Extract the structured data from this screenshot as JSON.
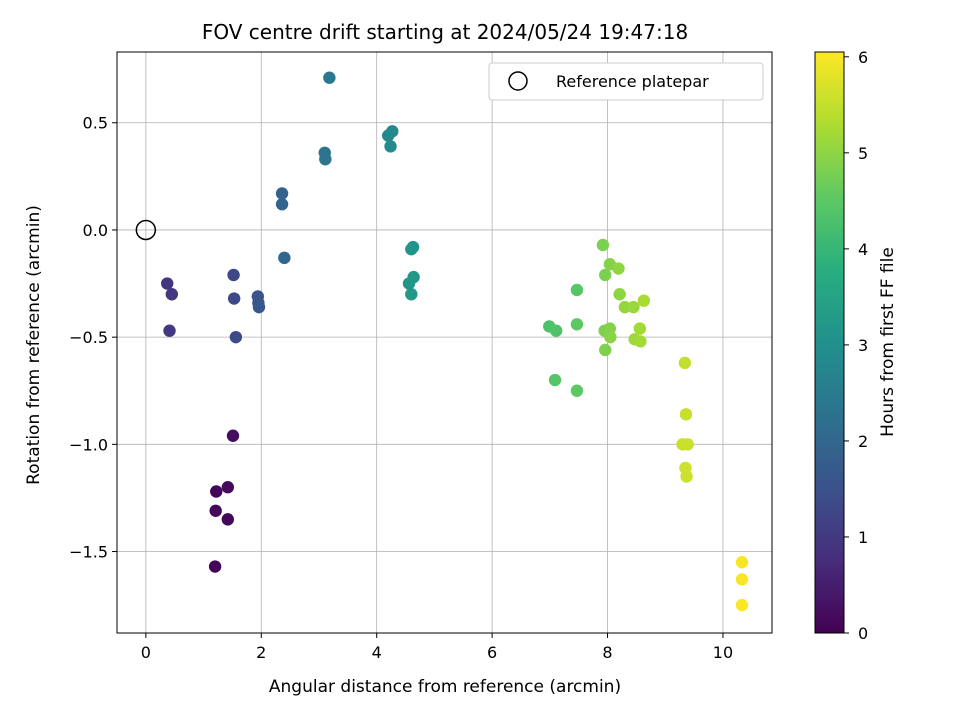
{
  "chart_data": {
    "type": "scatter",
    "title": "FOV centre drift starting at 2024/05/24 19:47:18",
    "xlabel": "Angular distance from reference (arcmin)",
    "ylabel": "Rotation from reference (arcmin)",
    "xlim": [
      -0.5,
      10.85
    ],
    "ylim": [
      -1.88,
      0.83
    ],
    "xticks": [
      0,
      2,
      4,
      6,
      8,
      10
    ],
    "yticks": [
      0.5,
      0.0,
      -0.5,
      -1.0,
      -1.5
    ],
    "ytick_labels": [
      "0.5",
      "0.0",
      "−0.5",
      "−1.0",
      "−1.5"
    ],
    "grid": true,
    "legend": {
      "position": "top-right",
      "entries": [
        {
          "label": "Reference platepar",
          "marker": "open-circle"
        }
      ]
    },
    "colormap": "viridis",
    "colorbar": {
      "label": "Hours from first FF file",
      "range": [
        0,
        6.05
      ],
      "ticks": [
        0,
        1,
        2,
        3,
        4,
        5,
        6
      ]
    },
    "reference_point": {
      "x": 0,
      "y": 0
    },
    "points": [
      {
        "x": 1.2,
        "y": -1.57,
        "h": 0.05
      },
      {
        "x": 1.22,
        "y": -1.22,
        "h": 0.08
      },
      {
        "x": 1.21,
        "y": -1.31,
        "h": 0.1
      },
      {
        "x": 1.42,
        "y": -1.35,
        "h": 0.12
      },
      {
        "x": 1.42,
        "y": -1.2,
        "h": 0.15
      },
      {
        "x": 1.51,
        "y": -0.96,
        "h": 0.2
      },
      {
        "x": 0.37,
        "y": -0.25,
        "h": 0.9
      },
      {
        "x": 0.45,
        "y": -0.3,
        "h": 0.95
      },
      {
        "x": 0.41,
        "y": -0.47,
        "h": 1.0
      },
      {
        "x": 1.52,
        "y": -0.21,
        "h": 1.3
      },
      {
        "x": 1.53,
        "y": -0.32,
        "h": 1.35
      },
      {
        "x": 1.56,
        "y": -0.5,
        "h": 1.4
      },
      {
        "x": 1.94,
        "y": -0.31,
        "h": 1.55
      },
      {
        "x": 1.95,
        "y": -0.34,
        "h": 1.58
      },
      {
        "x": 1.96,
        "y": -0.36,
        "h": 1.6
      },
      {
        "x": 2.36,
        "y": 0.17,
        "h": 1.9
      },
      {
        "x": 2.36,
        "y": 0.12,
        "h": 1.95
      },
      {
        "x": 2.4,
        "y": -0.13,
        "h": 2.0
      },
      {
        "x": 3.1,
        "y": 0.36,
        "h": 2.3
      },
      {
        "x": 3.11,
        "y": 0.33,
        "h": 2.33
      },
      {
        "x": 3.18,
        "y": 0.71,
        "h": 2.4
      },
      {
        "x": 4.2,
        "y": 0.44,
        "h": 2.8
      },
      {
        "x": 4.27,
        "y": 0.46,
        "h": 2.82
      },
      {
        "x": 4.24,
        "y": 0.39,
        "h": 2.85
      },
      {
        "x": 4.6,
        "y": -0.09,
        "h": 3.1
      },
      {
        "x": 4.63,
        "y": -0.08,
        "h": 3.12
      },
      {
        "x": 4.56,
        "y": -0.25,
        "h": 3.15
      },
      {
        "x": 4.64,
        "y": -0.22,
        "h": 3.18
      },
      {
        "x": 4.6,
        "y": -0.3,
        "h": 3.2
      },
      {
        "x": 6.99,
        "y": -0.45,
        "h": 4.3
      },
      {
        "x": 7.11,
        "y": -0.47,
        "h": 4.35
      },
      {
        "x": 7.09,
        "y": -0.7,
        "h": 4.4
      },
      {
        "x": 7.47,
        "y": -0.28,
        "h": 4.45
      },
      {
        "x": 7.47,
        "y": -0.44,
        "h": 4.5
      },
      {
        "x": 7.47,
        "y": -0.75,
        "h": 4.5
      },
      {
        "x": 7.92,
        "y": -0.07,
        "h": 4.8
      },
      {
        "x": 7.96,
        "y": -0.21,
        "h": 4.8
      },
      {
        "x": 7.95,
        "y": -0.47,
        "h": 4.85
      },
      {
        "x": 7.96,
        "y": -0.56,
        "h": 4.85
      },
      {
        "x": 8.04,
        "y": -0.16,
        "h": 4.9
      },
      {
        "x": 8.04,
        "y": -0.46,
        "h": 4.9
      },
      {
        "x": 8.05,
        "y": -0.5,
        "h": 4.95
      },
      {
        "x": 8.19,
        "y": -0.18,
        "h": 5.0
      },
      {
        "x": 8.21,
        "y": -0.3,
        "h": 5.0
      },
      {
        "x": 8.3,
        "y": -0.36,
        "h": 5.05
      },
      {
        "x": 8.45,
        "y": -0.36,
        "h": 5.1
      },
      {
        "x": 8.47,
        "y": -0.51,
        "h": 5.15
      },
      {
        "x": 8.56,
        "y": -0.46,
        "h": 5.2
      },
      {
        "x": 8.57,
        "y": -0.52,
        "h": 5.2
      },
      {
        "x": 8.63,
        "y": -0.33,
        "h": 5.25
      },
      {
        "x": 9.34,
        "y": -0.62,
        "h": 5.5
      },
      {
        "x": 9.36,
        "y": -0.86,
        "h": 5.55
      },
      {
        "x": 9.3,
        "y": -1.0,
        "h": 5.55
      },
      {
        "x": 9.39,
        "y": -1.0,
        "h": 5.58
      },
      {
        "x": 9.35,
        "y": -1.11,
        "h": 5.6
      },
      {
        "x": 9.37,
        "y": -1.15,
        "h": 5.6
      },
      {
        "x": 10.33,
        "y": -1.55,
        "h": 6.0
      },
      {
        "x": 10.33,
        "y": -1.63,
        "h": 6.0
      },
      {
        "x": 10.33,
        "y": -1.75,
        "h": 6.02
      }
    ]
  }
}
